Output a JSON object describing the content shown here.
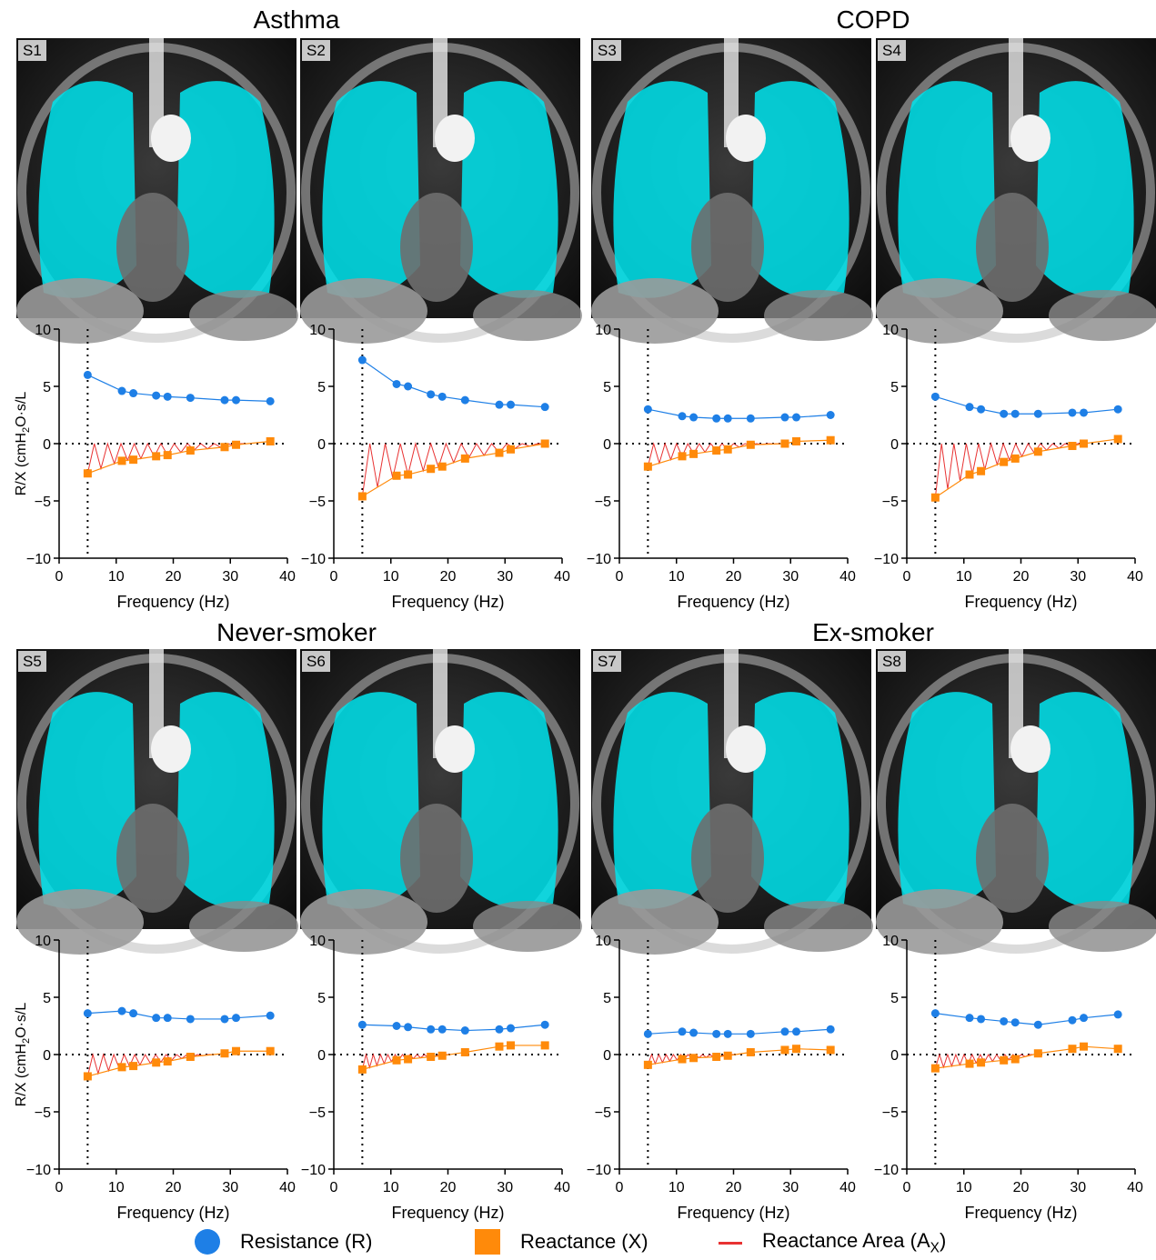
{
  "groups": [
    {
      "title": "Asthma",
      "subjects": [
        "S1",
        "S2"
      ]
    },
    {
      "title": "COPD",
      "subjects": [
        "S3",
        "S4"
      ]
    },
    {
      "title": "Never-smoker",
      "subjects": [
        "S5",
        "S6"
      ]
    },
    {
      "title": "Ex-smoker",
      "subjects": [
        "S7",
        "S8"
      ]
    }
  ],
  "axes": {
    "xlabel": "Frequency (Hz)",
    "ylabel_prefix": "R/X (cmH",
    "ylabel_sub": "2",
    "ylabel_suffix": "O·s/L",
    "xticks": [
      "0",
      "10",
      "20",
      "30",
      "40"
    ],
    "yticks": [
      "10",
      "5",
      "0",
      "−5",
      "−10"
    ]
  },
  "legend": {
    "resistance": "Resistance (R)",
    "reactance": "Reactance (X)",
    "area_prefix": "Reactance Area (A",
    "area_sub": "X",
    "area_suffix": ")"
  },
  "colors": {
    "resistance": "#1e7fe6",
    "reactance": "#ff8a0a",
    "area": "#e83232",
    "ventilation_overlay": "#00e5ee"
  },
  "chart_data": [
    {
      "type": "line",
      "subject": "S1",
      "xlim": [
        0,
        40
      ],
      "ylim": [
        -10,
        10
      ],
      "reference_x": 5,
      "x": [
        5,
        11,
        13,
        17,
        19,
        23,
        29,
        31,
        37
      ],
      "series": [
        {
          "name": "Resistance (R)",
          "values": [
            6.0,
            4.6,
            4.4,
            4.2,
            4.1,
            4.0,
            3.8,
            3.8,
            3.7
          ]
        },
        {
          "name": "Reactance (X)",
          "values": [
            -2.6,
            -1.5,
            -1.4,
            -1.1,
            -1.0,
            -0.6,
            -0.3,
            -0.1,
            0.2
          ]
        }
      ]
    },
    {
      "type": "line",
      "subject": "S2",
      "xlim": [
        0,
        40
      ],
      "ylim": [
        -10,
        10
      ],
      "reference_x": 5,
      "x": [
        5,
        11,
        13,
        17,
        19,
        23,
        29,
        31,
        37
      ],
      "series": [
        {
          "name": "Resistance (R)",
          "values": [
            7.3,
            5.2,
            5.0,
            4.3,
            4.1,
            3.8,
            3.4,
            3.4,
            3.2
          ]
        },
        {
          "name": "Reactance (X)",
          "values": [
            -4.6,
            -2.8,
            -2.7,
            -2.2,
            -2.0,
            -1.3,
            -0.8,
            -0.5,
            0.0
          ]
        }
      ]
    },
    {
      "type": "line",
      "subject": "S3",
      "xlim": [
        0,
        40
      ],
      "ylim": [
        -10,
        10
      ],
      "reference_x": 5,
      "x": [
        5,
        11,
        13,
        17,
        19,
        23,
        29,
        31,
        37
      ],
      "series": [
        {
          "name": "Resistance (R)",
          "values": [
            3.0,
            2.4,
            2.3,
            2.2,
            2.2,
            2.2,
            2.3,
            2.3,
            2.5
          ]
        },
        {
          "name": "Reactance (X)",
          "values": [
            -2.0,
            -1.1,
            -0.9,
            -0.6,
            -0.5,
            -0.1,
            0.0,
            0.2,
            0.3
          ]
        }
      ]
    },
    {
      "type": "line",
      "subject": "S4",
      "xlim": [
        0,
        40
      ],
      "ylim": [
        -10,
        10
      ],
      "reference_x": 5,
      "x": [
        5,
        11,
        13,
        17,
        19,
        23,
        29,
        31,
        37
      ],
      "series": [
        {
          "name": "Resistance (R)",
          "values": [
            4.1,
            3.2,
            3.0,
            2.6,
            2.6,
            2.6,
            2.7,
            2.7,
            3.0
          ]
        },
        {
          "name": "Reactance (X)",
          "values": [
            -4.7,
            -2.7,
            -2.4,
            -1.6,
            -1.3,
            -0.7,
            -0.2,
            0.0,
            0.4
          ]
        }
      ]
    },
    {
      "type": "line",
      "subject": "S5",
      "xlim": [
        0,
        40
      ],
      "ylim": [
        -10,
        10
      ],
      "reference_x": 5,
      "x": [
        5,
        11,
        13,
        17,
        19,
        23,
        29,
        31,
        37
      ],
      "series": [
        {
          "name": "Resistance (R)",
          "values": [
            3.6,
            3.8,
            3.6,
            3.2,
            3.2,
            3.1,
            3.1,
            3.2,
            3.4
          ]
        },
        {
          "name": "Reactance (X)",
          "values": [
            -1.9,
            -1.1,
            -1.0,
            -0.7,
            -0.6,
            -0.2,
            0.1,
            0.3,
            0.3
          ]
        }
      ]
    },
    {
      "type": "line",
      "subject": "S6",
      "xlim": [
        0,
        40
      ],
      "ylim": [
        -10,
        10
      ],
      "reference_x": 5,
      "x": [
        5,
        11,
        13,
        17,
        19,
        23,
        29,
        31,
        37
      ],
      "series": [
        {
          "name": "Resistance (R)",
          "values": [
            2.6,
            2.5,
            2.4,
            2.2,
            2.2,
            2.1,
            2.2,
            2.3,
            2.6
          ]
        },
        {
          "name": "Reactance (X)",
          "values": [
            -1.3,
            -0.5,
            -0.4,
            -0.2,
            -0.1,
            0.2,
            0.7,
            0.8,
            0.8
          ]
        }
      ]
    },
    {
      "type": "line",
      "subject": "S7",
      "xlim": [
        0,
        40
      ],
      "ylim": [
        -10,
        10
      ],
      "reference_x": 5,
      "x": [
        5,
        11,
        13,
        17,
        19,
        23,
        29,
        31,
        37
      ],
      "series": [
        {
          "name": "Resistance (R)",
          "values": [
            1.8,
            2.0,
            1.9,
            1.8,
            1.8,
            1.8,
            2.0,
            2.0,
            2.2
          ]
        },
        {
          "name": "Reactance (X)",
          "values": [
            -0.9,
            -0.4,
            -0.3,
            -0.2,
            -0.1,
            0.2,
            0.4,
            0.5,
            0.4
          ]
        }
      ]
    },
    {
      "type": "line",
      "subject": "S8",
      "xlim": [
        0,
        40
      ],
      "ylim": [
        -10,
        10
      ],
      "reference_x": 5,
      "x": [
        5,
        11,
        13,
        17,
        19,
        23,
        29,
        31,
        37
      ],
      "series": [
        {
          "name": "Resistance (R)",
          "values": [
            3.6,
            3.2,
            3.1,
            2.9,
            2.8,
            2.6,
            3.0,
            3.2,
            3.5
          ]
        },
        {
          "name": "Reactance (X)",
          "values": [
            -1.2,
            -0.8,
            -0.7,
            -0.5,
            -0.4,
            0.1,
            0.5,
            0.7,
            0.5
          ]
        }
      ]
    }
  ]
}
